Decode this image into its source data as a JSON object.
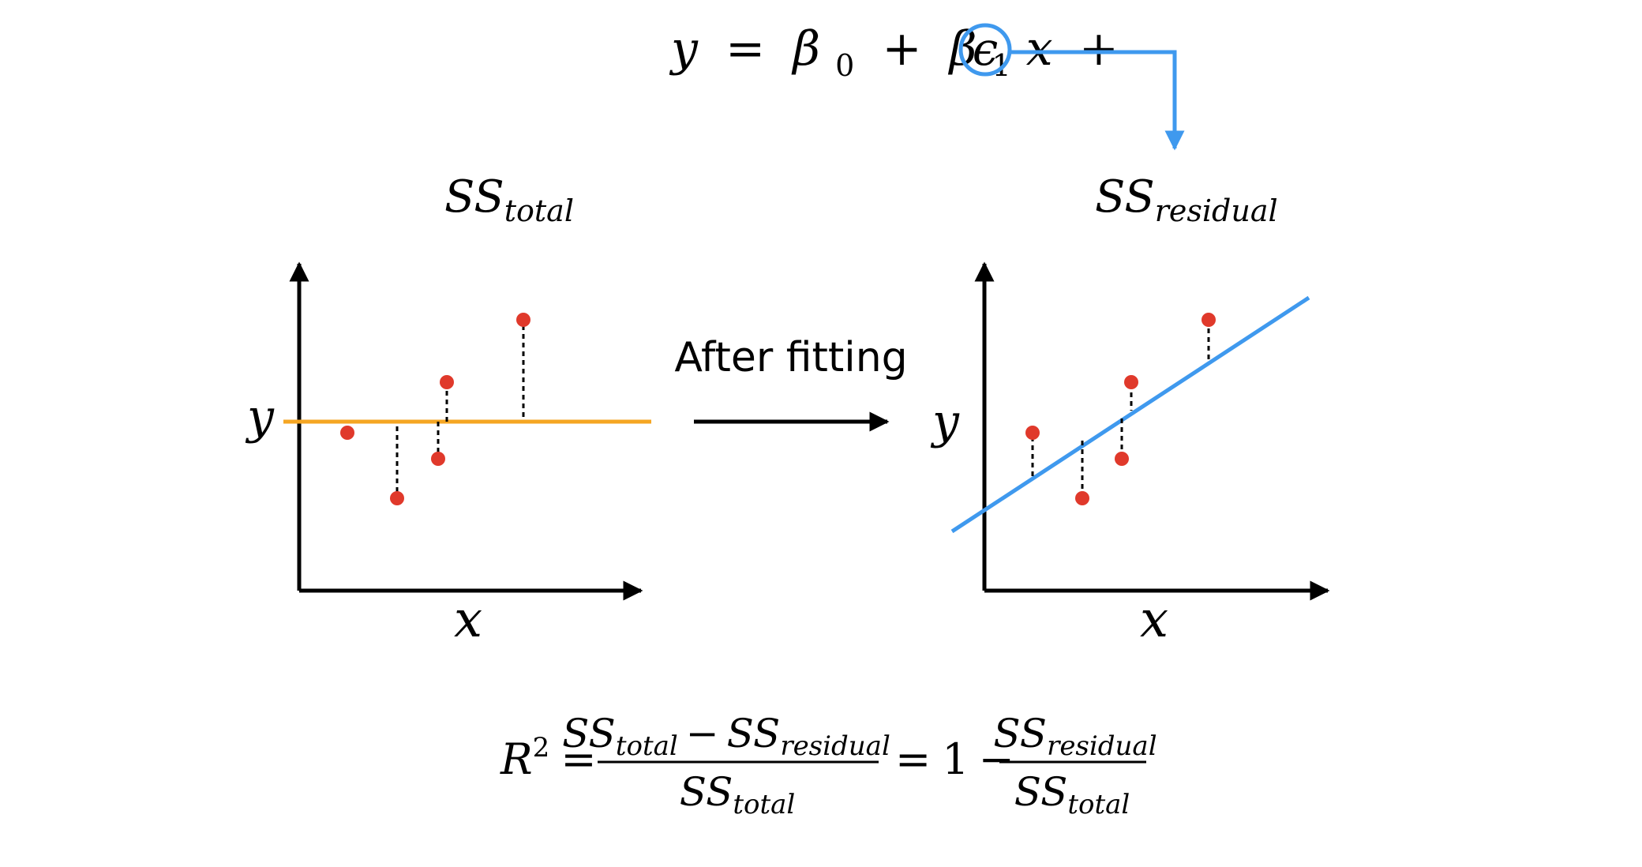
{
  "model_equation": {
    "y": "y",
    "eq": "=",
    "beta": "β",
    "sub0": "0",
    "plus": "+",
    "sub1": "1",
    "x": "x",
    "epsilon": "ϵ"
  },
  "left_panel": {
    "title_main": "SS",
    "title_sub": "total",
    "y_label": "y",
    "x_label": "x"
  },
  "right_panel": {
    "title_main": "SS",
    "title_sub": "residual",
    "y_label": "y",
    "x_label": "x"
  },
  "transition_label": "After fitting",
  "r2_formula": {
    "R": "R",
    "sup2": "2",
    "eq": "=",
    "ss": "SS",
    "total": "total",
    "minus": "−",
    "residual": "residual",
    "one": "1"
  },
  "colors": {
    "mean_line": "#F5A623",
    "fit_line": "#3F99EE",
    "points": "#E0392B",
    "epsilon_highlight": "#3F99EE"
  }
}
